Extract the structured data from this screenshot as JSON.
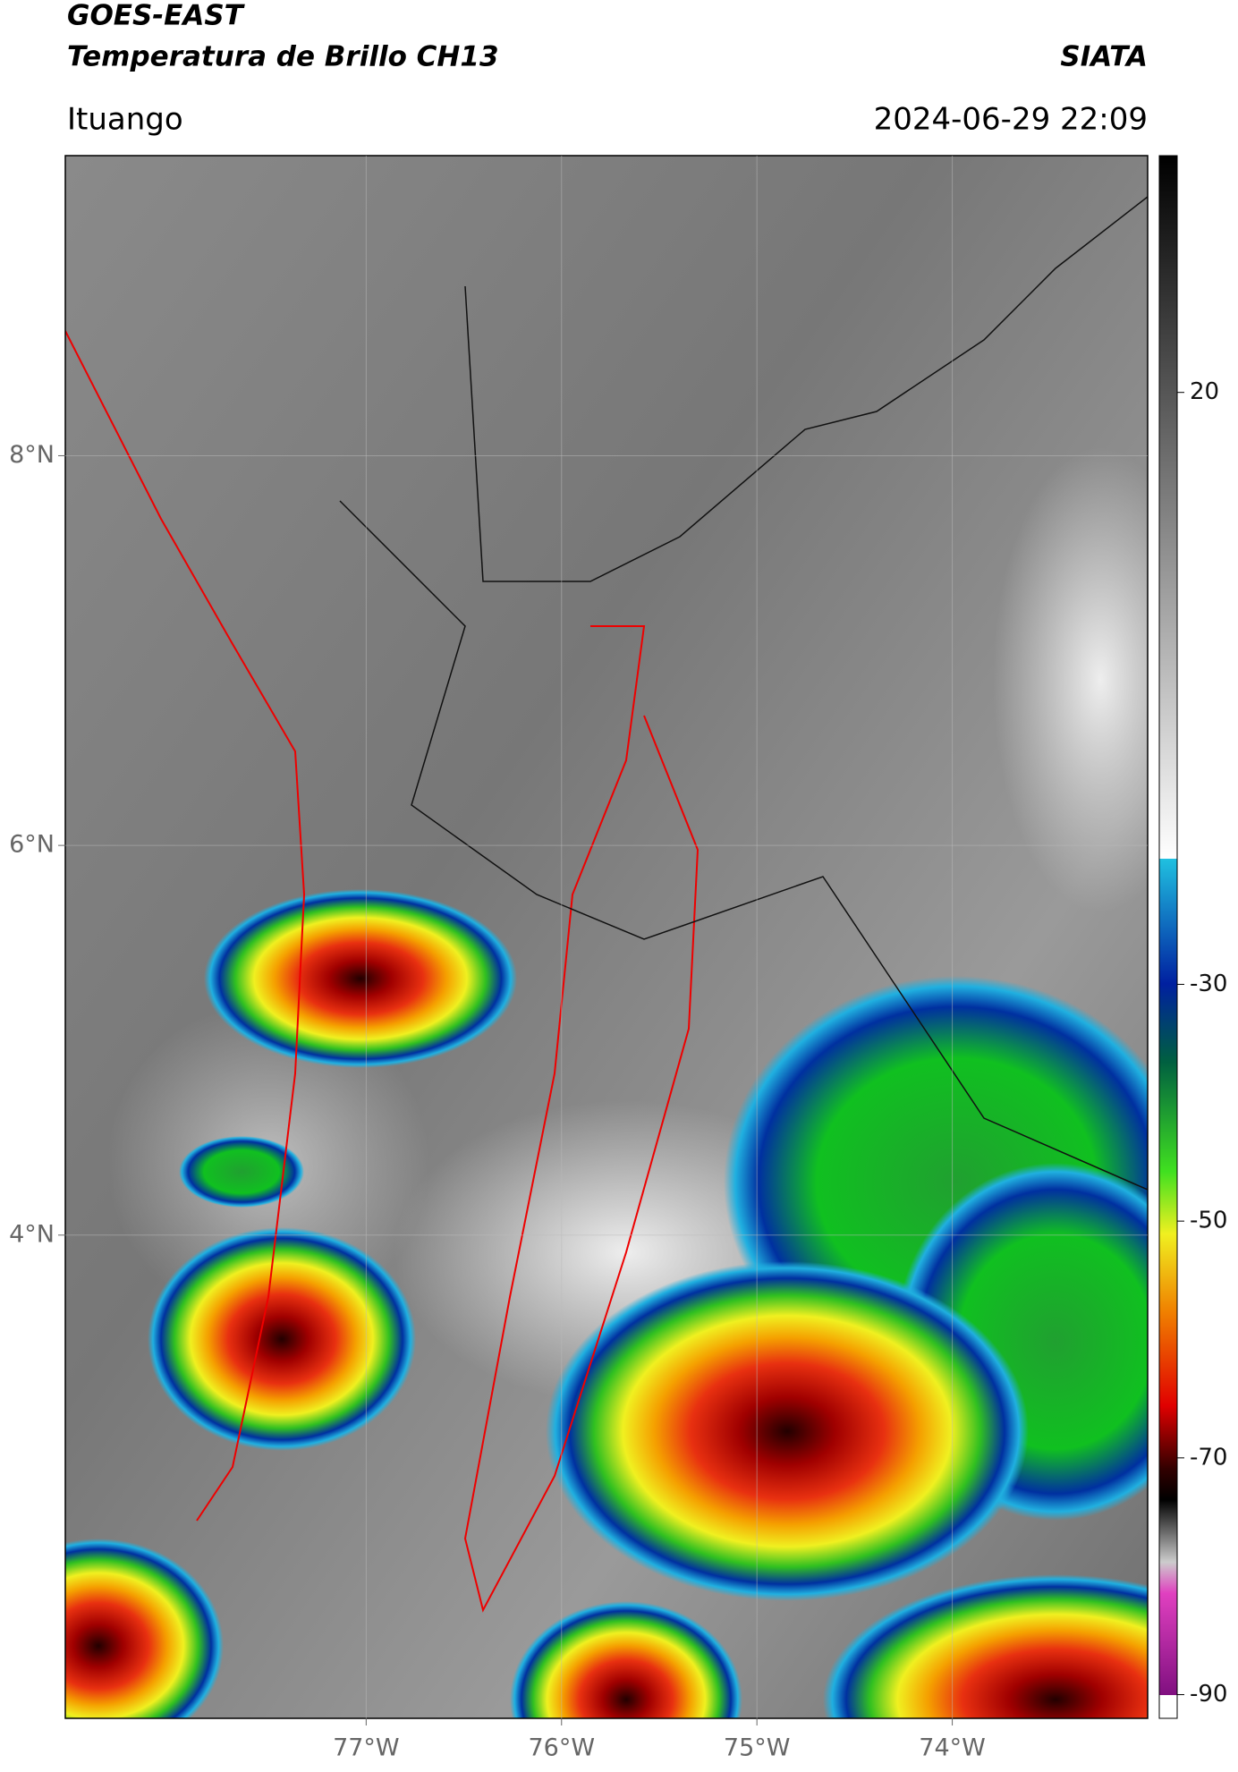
{
  "header": {
    "title": "GOES-EAST",
    "subtitle": "Temperatura de Brillo CH13",
    "brand": "SIATA",
    "location": "Ituango",
    "datetime": "2024-06-29 22:09"
  },
  "chart_data": {
    "type": "map",
    "xlim": [
      -78.54,
      -73.0
    ],
    "xticks": [
      {
        "value": -77,
        "label": "77°W"
      },
      {
        "value": -76,
        "label": "76°W"
      },
      {
        "value": -75,
        "label": "75°W"
      },
      {
        "value": -74,
        "label": "74°W"
      }
    ],
    "ylim": [
      1.52,
      9.54
    ],
    "yticks": [
      {
        "value": 8,
        "label": "8°N"
      },
      {
        "value": 6,
        "label": "6°N"
      },
      {
        "value": 4,
        "label": "4°N"
      }
    ],
    "grid": true,
    "colorbar": {
      "lim": [
        -92,
        40
      ],
      "ticks": [
        20,
        -30,
        -50,
        -70,
        -90
      ]
    }
  }
}
